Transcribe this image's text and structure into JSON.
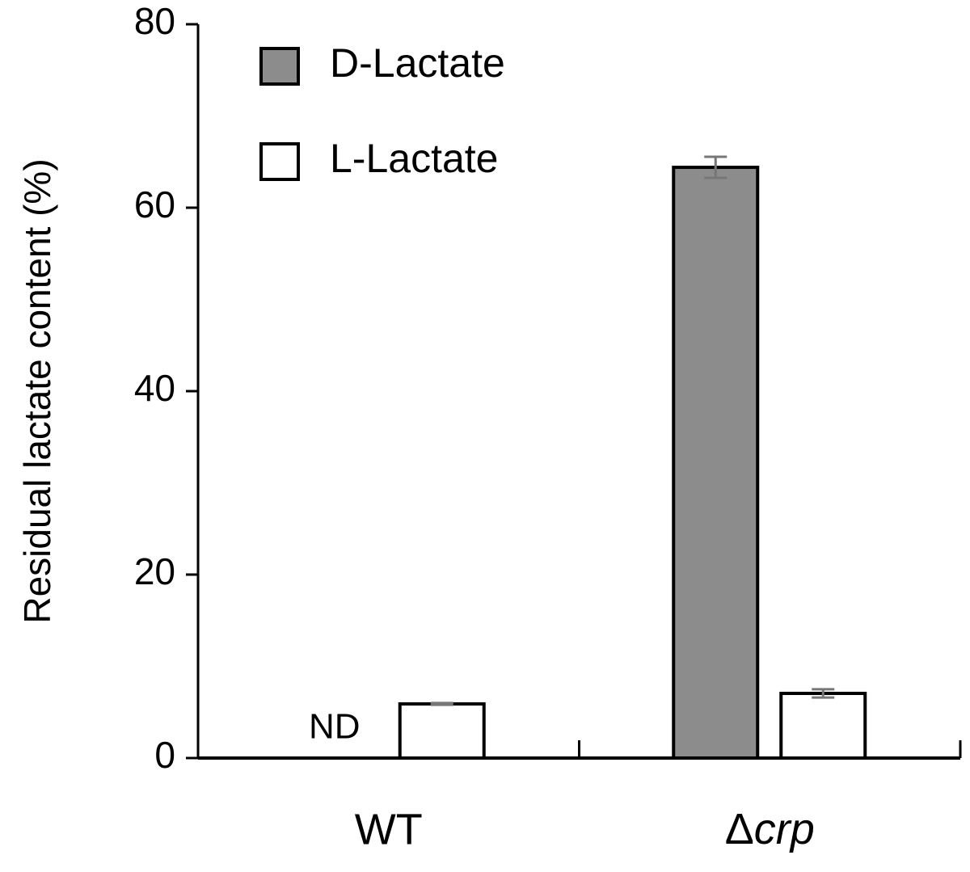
{
  "chart_data": {
    "type": "bar",
    "y_label": "Residual lactate content (%)",
    "categories": [
      "WT",
      "Δcrp"
    ],
    "series": [
      {
        "name": "D-Lactate",
        "color": "#8c8c8c",
        "values": [
          null,
          64.4
        ],
        "errors": [
          null,
          1.15
        ]
      },
      {
        "name": "L-Lactate",
        "color": "#ffffff",
        "values": [
          5.9,
          7.05
        ],
        "errors": [
          0.1,
          0.45
        ]
      }
    ],
    "annotation": "ND",
    "ylim": [
      0,
      80
    ],
    "yticks": [
      0,
      20,
      40,
      60,
      80
    ],
    "grid": false,
    "legend": "upper left"
  }
}
